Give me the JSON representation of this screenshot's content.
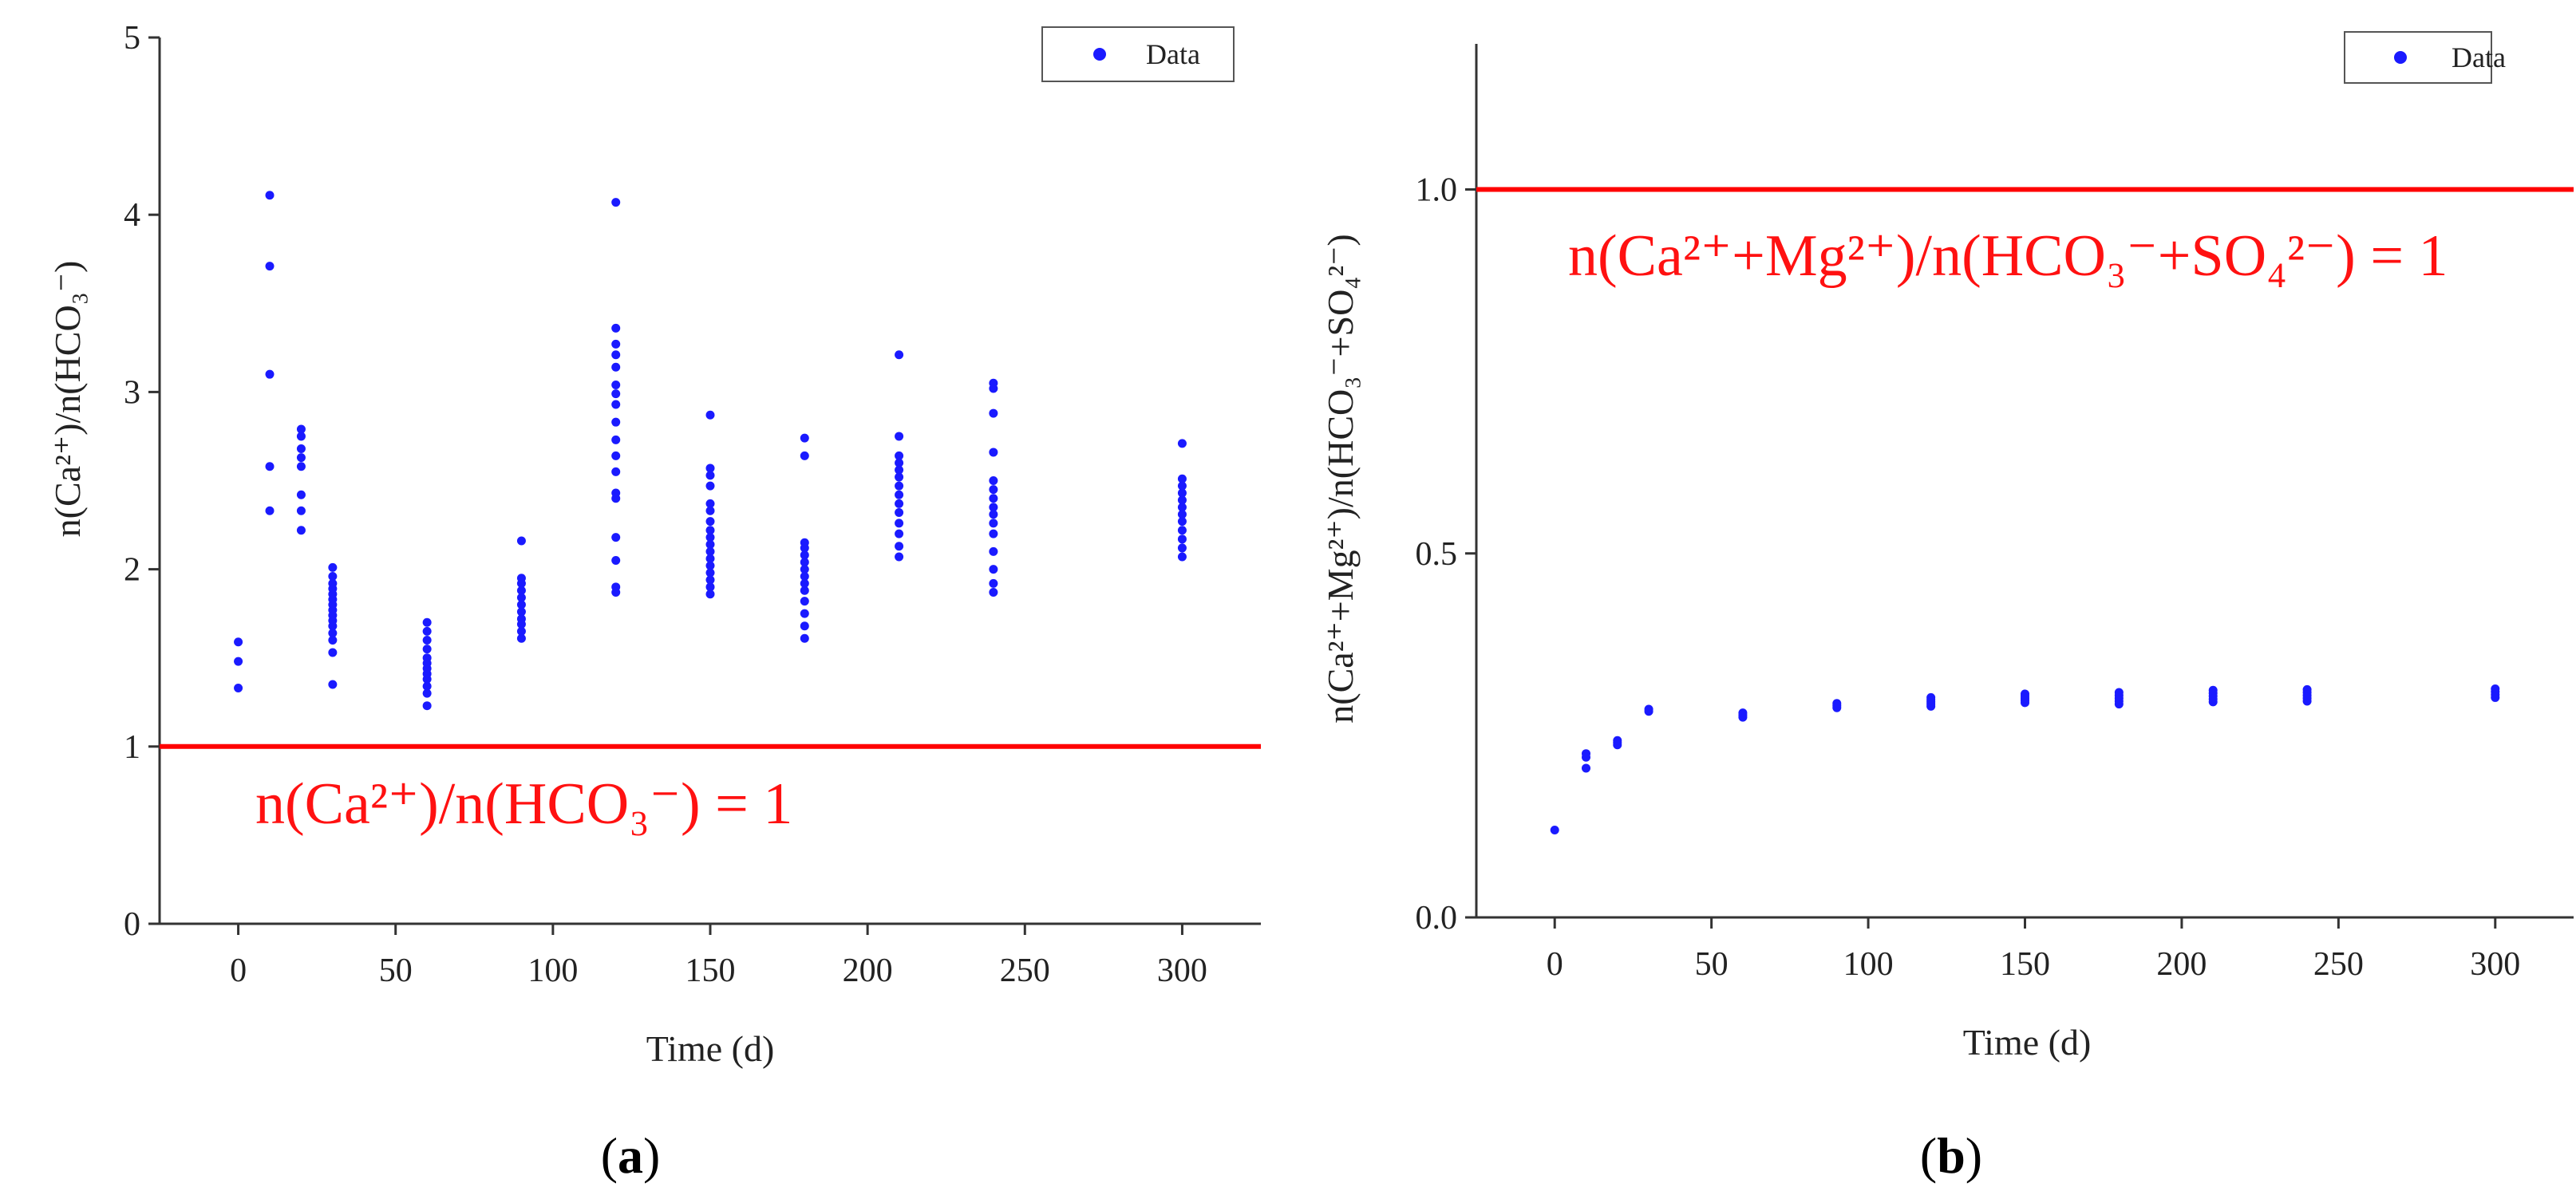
{
  "chart_data": [
    {
      "type": "scatter",
      "panel_label": "(a)",
      "panel_letter": "a",
      "xlabel": "Time (d)",
      "ylabel": "n(Ca²⁺)/n(HCO₃⁻)",
      "xlim": [
        -25,
        325
      ],
      "ylim": [
        0,
        5
      ],
      "xticks": [
        0,
        50,
        100,
        150,
        200,
        250,
        300
      ],
      "yticks": [
        0,
        1,
        2,
        3,
        4,
        5
      ],
      "legend": {
        "label": "Data",
        "position": "top-right"
      },
      "reference_line": {
        "y": 1,
        "label": "n(Ca²⁺)/n(HCO₃⁻) = 1",
        "color": "#ff0000"
      },
      "series": [
        {
          "name": "Data",
          "color": "#1a1aff",
          "points": [
            [
              0,
              1.33
            ],
            [
              0,
              1.48
            ],
            [
              0,
              1.59
            ],
            [
              10,
              2.33
            ],
            [
              10,
              2.58
            ],
            [
              10,
              3.1
            ],
            [
              10,
              3.71
            ],
            [
              10,
              4.11
            ],
            [
              20,
              2.22
            ],
            [
              20,
              2.33
            ],
            [
              20,
              2.42
            ],
            [
              20,
              2.58
            ],
            [
              20,
              2.63
            ],
            [
              20,
              2.68
            ],
            [
              20,
              2.75
            ],
            [
              20,
              2.79
            ],
            [
              30,
              1.35
            ],
            [
              30,
              1.53
            ],
            [
              30,
              1.6
            ],
            [
              30,
              1.64
            ],
            [
              30,
              1.68
            ],
            [
              30,
              1.71
            ],
            [
              30,
              1.74
            ],
            [
              30,
              1.77
            ],
            [
              30,
              1.8
            ],
            [
              30,
              1.83
            ],
            [
              30,
              1.86
            ],
            [
              30,
              1.89
            ],
            [
              30,
              1.92
            ],
            [
              30,
              1.96
            ],
            [
              30,
              2.01
            ],
            [
              60,
              1.23
            ],
            [
              60,
              1.3
            ],
            [
              60,
              1.34
            ],
            [
              60,
              1.38
            ],
            [
              60,
              1.41
            ],
            [
              60,
              1.44
            ],
            [
              60,
              1.47
            ],
            [
              60,
              1.5
            ],
            [
              60,
              1.55
            ],
            [
              60,
              1.6
            ],
            [
              60,
              1.65
            ],
            [
              60,
              1.7
            ],
            [
              90,
              1.61
            ],
            [
              90,
              1.65
            ],
            [
              90,
              1.69
            ],
            [
              90,
              1.72
            ],
            [
              90,
              1.76
            ],
            [
              90,
              1.8
            ],
            [
              90,
              1.84
            ],
            [
              90,
              1.88
            ],
            [
              90,
              1.92
            ],
            [
              90,
              1.95
            ],
            [
              90,
              2.16
            ],
            [
              120,
              1.87
            ],
            [
              120,
              1.9
            ],
            [
              120,
              2.05
            ],
            [
              120,
              2.18
            ],
            [
              120,
              2.4
            ],
            [
              120,
              2.43
            ],
            [
              120,
              2.55
            ],
            [
              120,
              2.64
            ],
            [
              120,
              2.73
            ],
            [
              120,
              2.83
            ],
            [
              120,
              2.93
            ],
            [
              120,
              2.99
            ],
            [
              120,
              3.04
            ],
            [
              120,
              3.14
            ],
            [
              120,
              3.21
            ],
            [
              120,
              3.27
            ],
            [
              120,
              3.36
            ],
            [
              120,
              4.07
            ],
            [
              150,
              1.86
            ],
            [
              150,
              1.9
            ],
            [
              150,
              1.94
            ],
            [
              150,
              1.98
            ],
            [
              150,
              2.02
            ],
            [
              150,
              2.06
            ],
            [
              150,
              2.1
            ],
            [
              150,
              2.14
            ],
            [
              150,
              2.18
            ],
            [
              150,
              2.22
            ],
            [
              150,
              2.27
            ],
            [
              150,
              2.33
            ],
            [
              150,
              2.37
            ],
            [
              150,
              2.47
            ],
            [
              150,
              2.53
            ],
            [
              150,
              2.57
            ],
            [
              150,
              2.87
            ],
            [
              180,
              1.61
            ],
            [
              180,
              1.68
            ],
            [
              180,
              1.75
            ],
            [
              180,
              1.82
            ],
            [
              180,
              1.88
            ],
            [
              180,
              1.92
            ],
            [
              180,
              1.96
            ],
            [
              180,
              2.0
            ],
            [
              180,
              2.04
            ],
            [
              180,
              2.08
            ],
            [
              180,
              2.12
            ],
            [
              180,
              2.15
            ],
            [
              180,
              2.64
            ],
            [
              180,
              2.74
            ],
            [
              210,
              2.07
            ],
            [
              210,
              2.13
            ],
            [
              210,
              2.2
            ],
            [
              210,
              2.26
            ],
            [
              210,
              2.32
            ],
            [
              210,
              2.37
            ],
            [
              210,
              2.42
            ],
            [
              210,
              2.47
            ],
            [
              210,
              2.52
            ],
            [
              210,
              2.56
            ],
            [
              210,
              2.6
            ],
            [
              210,
              2.64
            ],
            [
              210,
              2.75
            ],
            [
              210,
              3.21
            ],
            [
              240,
              1.87
            ],
            [
              240,
              1.92
            ],
            [
              240,
              2.0
            ],
            [
              240,
              2.1
            ],
            [
              240,
              2.2
            ],
            [
              240,
              2.26
            ],
            [
              240,
              2.31
            ],
            [
              240,
              2.35
            ],
            [
              240,
              2.4
            ],
            [
              240,
              2.45
            ],
            [
              240,
              2.5
            ],
            [
              240,
              2.66
            ],
            [
              240,
              2.88
            ],
            [
              240,
              3.02
            ],
            [
              240,
              3.05
            ],
            [
              300,
              2.07
            ],
            [
              300,
              2.12
            ],
            [
              300,
              2.17
            ],
            [
              300,
              2.22
            ],
            [
              300,
              2.27
            ],
            [
              300,
              2.31
            ],
            [
              300,
              2.35
            ],
            [
              300,
              2.39
            ],
            [
              300,
              2.43
            ],
            [
              300,
              2.47
            ],
            [
              300,
              2.51
            ],
            [
              300,
              2.71
            ]
          ]
        }
      ]
    },
    {
      "type": "scatter",
      "panel_label": "(b)",
      "panel_letter": "b",
      "xlabel": "Time (d)",
      "ylabel": "n(Ca²⁺+Mg²⁺)/n(HCO₃⁻+SO₄²⁻)",
      "xlim": [
        -25,
        325
      ],
      "ylim": [
        0,
        1.2
      ],
      "xticks": [
        0,
        50,
        100,
        150,
        200,
        250,
        300
      ],
      "yticks": [
        0.0,
        0.5,
        1.0
      ],
      "ytick_labels": [
        "0.0",
        "0.5",
        "1.0"
      ],
      "legend": {
        "label": "Data",
        "position": "top-right"
      },
      "reference_line": {
        "y": 1.0,
        "label": "n(Ca²⁺+Mg²⁺)/n(HCO₃⁻+SO₄²⁻) = 1",
        "color": "#ff0000"
      },
      "series": [
        {
          "name": "Data",
          "color": "#1a1aff",
          "points": [
            [
              0,
              0.12
            ],
            [
              10,
              0.205
            ],
            [
              10,
              0.22
            ],
            [
              10,
              0.225
            ],
            [
              20,
              0.237
            ],
            [
              20,
              0.24
            ],
            [
              20,
              0.243
            ],
            [
              30,
              0.283
            ],
            [
              30,
              0.286
            ],
            [
              60,
              0.275
            ],
            [
              60,
              0.278
            ],
            [
              60,
              0.281
            ],
            [
              90,
              0.288
            ],
            [
              90,
              0.291
            ],
            [
              90,
              0.294
            ],
            [
              120,
              0.29
            ],
            [
              120,
              0.293
            ],
            [
              120,
              0.296
            ],
            [
              120,
              0.299
            ],
            [
              120,
              0.302
            ],
            [
              150,
              0.295
            ],
            [
              150,
              0.298
            ],
            [
              150,
              0.301
            ],
            [
              150,
              0.304
            ],
            [
              150,
              0.307
            ],
            [
              180,
              0.293
            ],
            [
              180,
              0.297
            ],
            [
              180,
              0.301
            ],
            [
              180,
              0.305
            ],
            [
              180,
              0.309
            ],
            [
              210,
              0.296
            ],
            [
              210,
              0.3
            ],
            [
              210,
              0.304
            ],
            [
              210,
              0.308
            ],
            [
              210,
              0.312
            ],
            [
              240,
              0.297
            ],
            [
              240,
              0.301
            ],
            [
              240,
              0.305
            ],
            [
              240,
              0.309
            ],
            [
              240,
              0.313
            ],
            [
              300,
              0.302
            ],
            [
              300,
              0.306
            ],
            [
              300,
              0.31
            ],
            [
              300,
              0.314
            ]
          ]
        }
      ]
    }
  ]
}
